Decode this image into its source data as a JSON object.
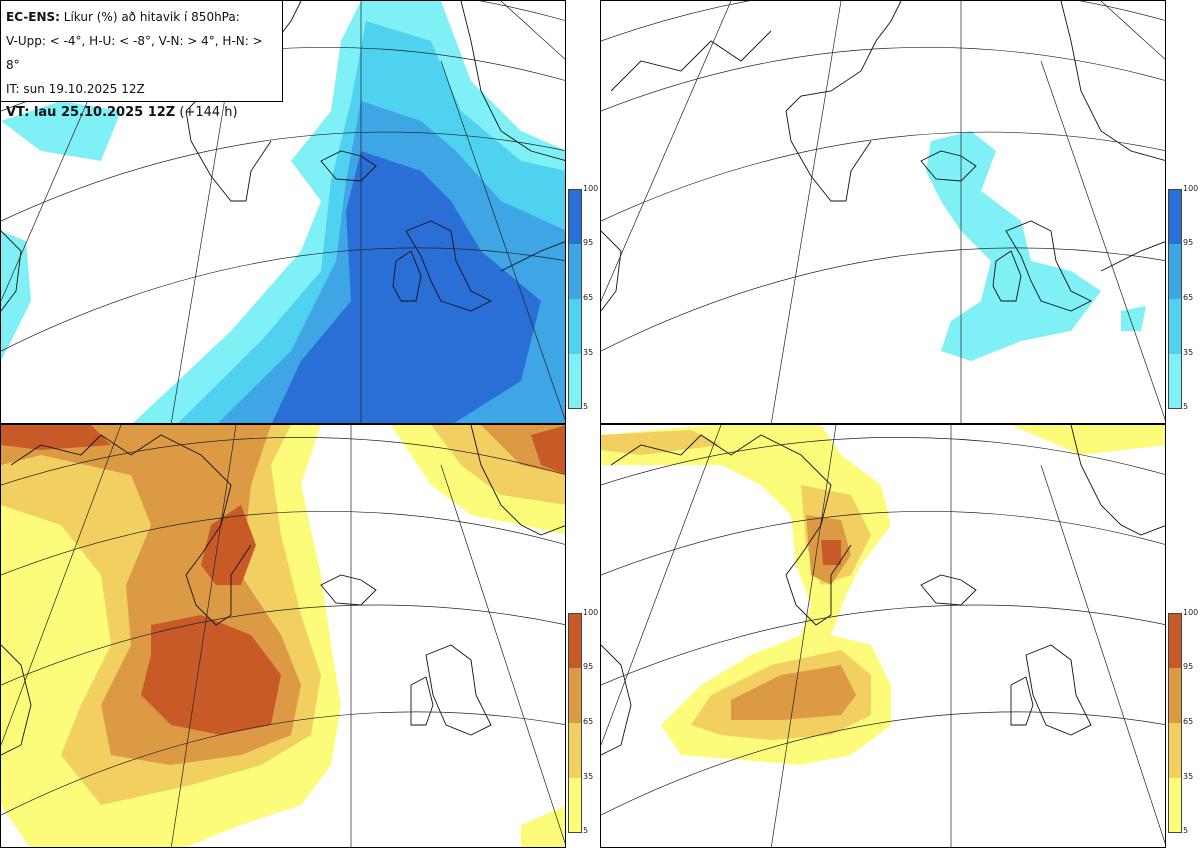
{
  "info": {
    "model": "EC-ENS:",
    "title": "Líkur (%) að hitavik í 850hPa:",
    "legend_line": "V-Upp: < -4°, H-U: < -8°, V-N: > 4°, H-N: > 8°",
    "init_time": "IT: sun 19.10.2025 12Z",
    "valid_label": "VT: lau 25.10.2025 12Z",
    "lead": "(+144 h)"
  },
  "colorbar_ticks": [
    "100",
    "95",
    "65",
    "35",
    "5"
  ],
  "colors": {
    "cold": [
      "#7ff0f5",
      "#4fd2f0",
      "#3fa6e6",
      "#2a6fd6"
    ],
    "warm": [
      "#fdfb7a",
      "#f1cf60",
      "#dc9a45",
      "#c85a28"
    ]
  },
  "panels": [
    {
      "name": "cold-4",
      "scheme": "cold",
      "max_level": 4
    },
    {
      "name": "cold-8",
      "scheme": "cold",
      "max_level": 1
    },
    {
      "name": "warm-4",
      "scheme": "warm",
      "max_level": 4
    },
    {
      "name": "warm-8",
      "scheme": "warm",
      "max_level": 4
    }
  ]
}
